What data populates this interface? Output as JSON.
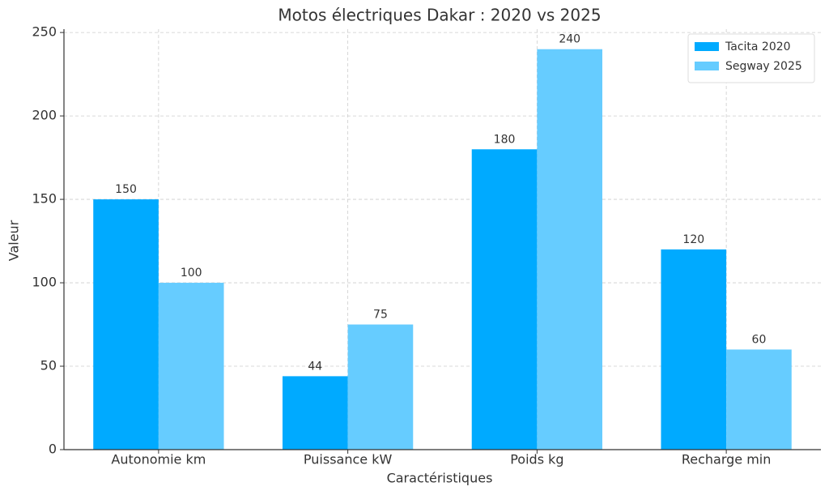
{
  "chart_data": {
    "type": "bar",
    "title": "Motos électriques Dakar : 2020 vs 2025",
    "x_label": "Caractéristiques",
    "y_label": "Valeur",
    "categories": [
      "Autonomie km",
      "Puissance kW",
      "Poids kg",
      "Recharge min"
    ],
    "series": [
      {
        "name": "Tacita 2020",
        "color": "#00aaff",
        "values": [
          150,
          44,
          180,
          120
        ]
      },
      {
        "name": "Segway 2025",
        "color": "#66ccff",
        "values": [
          100,
          75,
          240,
          60
        ]
      }
    ],
    "ylim": [
      0,
      252
    ],
    "yticks": [
      0,
      50,
      100,
      150,
      200,
      250
    ],
    "grid": true,
    "legend": "upper right"
  }
}
